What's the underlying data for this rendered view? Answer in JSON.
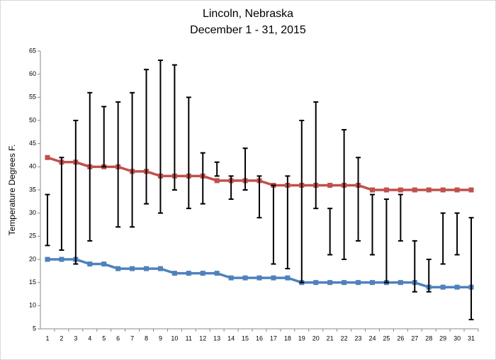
{
  "chart_data": {
    "type": "line",
    "title": "Lincoln, Nebraska",
    "subtitle": "December 1 - 31, 2015",
    "y_label": "Temperature Degrees  F.",
    "categories": [
      1,
      2,
      3,
      4,
      5,
      6,
      7,
      8,
      9,
      10,
      11,
      12,
      13,
      14,
      15,
      16,
      17,
      18,
      19,
      20,
      21,
      22,
      23,
      24,
      25,
      26,
      27,
      28,
      29,
      30,
      31
    ],
    "series": [
      {
        "color": "#c0504d",
        "values": [
          42,
          41,
          41,
          40,
          40,
          40,
          39,
          39,
          38,
          38,
          38,
          38,
          37,
          37,
          37,
          37,
          36,
          36,
          36,
          36,
          36,
          36,
          36,
          35,
          35,
          35,
          35,
          35,
          35,
          35,
          35
        ]
      },
      {
        "color": "#4f81bd",
        "values": [
          20,
          20,
          20,
          19,
          19,
          18,
          18,
          18,
          18,
          17,
          17,
          17,
          17,
          16,
          16,
          16,
          16,
          16,
          15,
          15,
          15,
          15,
          15,
          15,
          15,
          15,
          15,
          14,
          14,
          14,
          14
        ]
      }
    ],
    "ranges": {
      "color": "#000000",
      "high": [
        34,
        42,
        50,
        56,
        53,
        54,
        56,
        61,
        63,
        62,
        55,
        43,
        41,
        38,
        44,
        38,
        36,
        38,
        50,
        54,
        31,
        48,
        42,
        34,
        33,
        34,
        24,
        20,
        30,
        30,
        29
      ],
      "low": [
        23,
        22,
        19,
        24,
        40,
        27,
        27,
        32,
        30,
        35,
        31,
        32,
        38,
        33,
        35,
        29,
        19,
        18,
        15,
        31,
        21,
        20,
        24,
        21,
        15,
        24,
        13,
        13,
        19,
        21,
        7
      ]
    },
    "ylim": [
      5,
      65
    ],
    "yticks": [
      5,
      10,
      15,
      20,
      25,
      30,
      35,
      40,
      45,
      50,
      55,
      60,
      65
    ],
    "grid": false
  }
}
